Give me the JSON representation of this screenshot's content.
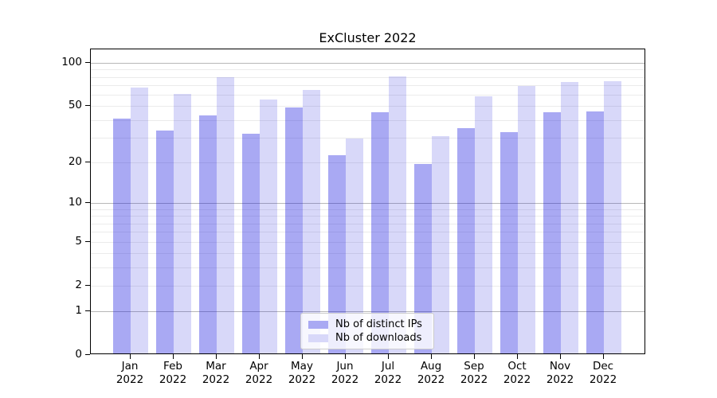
{
  "chart_data": {
    "type": "bar",
    "title": "ExCluster 2022",
    "x_categories": [
      {
        "month": "Jan",
        "year": "2022"
      },
      {
        "month": "Feb",
        "year": "2022"
      },
      {
        "month": "Mar",
        "year": "2022"
      },
      {
        "month": "Apr",
        "year": "2022"
      },
      {
        "month": "May",
        "year": "2022"
      },
      {
        "month": "Jun",
        "year": "2022"
      },
      {
        "month": "Jul",
        "year": "2022"
      },
      {
        "month": "Aug",
        "year": "2022"
      },
      {
        "month": "Sep",
        "year": "2022"
      },
      {
        "month": "Oct",
        "year": "2022"
      },
      {
        "month": "Nov",
        "year": "2022"
      },
      {
        "month": "Dec",
        "year": "2022"
      }
    ],
    "series": [
      {
        "name": "Nb of distinct IPs",
        "bar_color": "rgba(10,10,220,0.35)",
        "swatch_color": "#a9a9f3",
        "values": [
          40,
          33,
          42,
          31,
          48,
          22,
          44,
          19,
          34,
          32,
          44,
          45
        ]
      },
      {
        "name": "Nb of downloads",
        "bar_color": "rgba(10,10,220,0.16)",
        "swatch_color": "#d8d8f9",
        "values": [
          66,
          59,
          78,
          54,
          63,
          29,
          79,
          30,
          57,
          67,
          72,
          73
        ]
      }
    ],
    "y_axis": {
      "scale": "log1p",
      "max": 124,
      "ticks": [
        0,
        1,
        2,
        5,
        10,
        20,
        50,
        100
      ],
      "major_gridlines": [
        1,
        10,
        100
      ],
      "minor_gridlines": [
        2,
        3,
        4,
        5,
        6,
        7,
        8,
        9,
        20,
        30,
        40,
        50,
        60,
        70,
        80,
        90
      ]
    },
    "legend": {
      "position": "lower center"
    },
    "grid": true
  }
}
